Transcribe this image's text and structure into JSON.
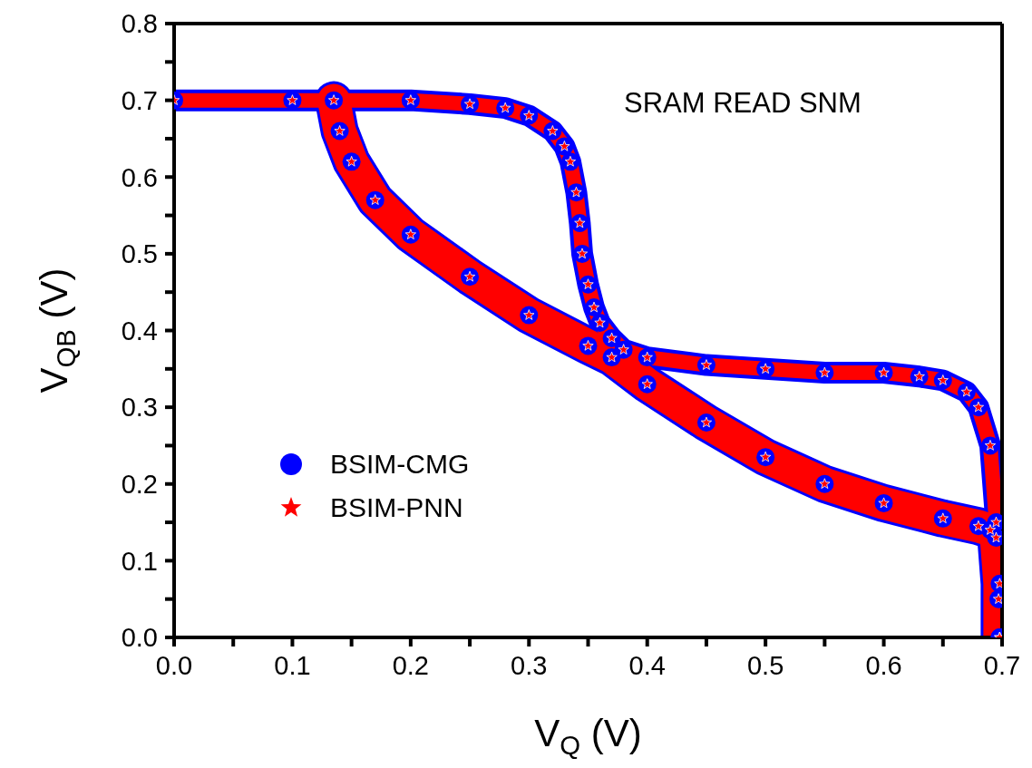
{
  "chart_data": {
    "type": "line",
    "xlabel": "V$_{Q}$ (V)",
    "ylabel": "V$_{QB}$ (V)",
    "annotations": [
      "SRAM READ SNM"
    ],
    "xlim": [
      0,
      0.7
    ],
    "ylim": [
      0,
      0.8
    ],
    "xticks": [
      {
        "value": 0,
        "label": "0.0"
      },
      {
        "value": 0.05,
        "label": null
      },
      {
        "value": 0.1,
        "label": "0.1"
      },
      {
        "value": 0.15,
        "label": null
      },
      {
        "value": 0.2,
        "label": "0.2"
      },
      {
        "value": 0.25,
        "label": null
      },
      {
        "value": 0.3,
        "label": "0.3"
      },
      {
        "value": 0.35,
        "label": null
      },
      {
        "value": 0.4,
        "label": "0.4"
      },
      {
        "value": 0.45,
        "label": null
      },
      {
        "value": 0.5,
        "label": "0.5"
      },
      {
        "value": 0.55,
        "label": null
      },
      {
        "value": 0.6,
        "label": "0.6"
      },
      {
        "value": 0.65,
        "label": null
      },
      {
        "value": 0.7,
        "label": "0.7"
      }
    ],
    "yticks": [
      {
        "value": 0,
        "label": "0.0"
      },
      {
        "value": 0.05,
        "label": null
      },
      {
        "value": 0.1,
        "label": "0.1"
      },
      {
        "value": 0.15,
        "label": null
      },
      {
        "value": 0.2,
        "label": "0.2"
      },
      {
        "value": 0.25,
        "label": null
      },
      {
        "value": 0.3,
        "label": "0.3"
      },
      {
        "value": 0.35,
        "label": null
      },
      {
        "value": 0.4,
        "label": "0.4"
      },
      {
        "value": 0.45,
        "label": null
      },
      {
        "value": 0.5,
        "label": "0.5"
      },
      {
        "value": 0.55,
        "label": null
      },
      {
        "value": 0.6,
        "label": "0.6"
      },
      {
        "value": 0.65,
        "label": null
      },
      {
        "value": 0.7,
        "label": "0.7"
      },
      {
        "value": 0.75,
        "label": null
      },
      {
        "value": 0.8,
        "label": "0.8"
      }
    ],
    "grid": false,
    "legend": "left",
    "series": [
      {
        "name": "BSIM-CMG",
        "color": "#0000ff",
        "marker": "circle",
        "x": [
          0,
          0.1,
          0.2,
          0.25,
          0.28,
          0.3,
          0.32,
          0.33,
          0.335,
          0.34,
          0.343,
          0.345,
          0.35,
          0.355,
          0.36,
          0.37,
          0.38,
          0.4,
          0.45,
          0.5,
          0.55,
          0.6,
          0.63,
          0.65,
          0.67,
          0.68,
          0.69,
          0.695,
          0.697,
          0.698
        ],
        "values": [
          0.7,
          0.7,
          0.7,
          0.695,
          0.69,
          0.68,
          0.66,
          0.64,
          0.62,
          0.58,
          0.54,
          0.5,
          0.46,
          0.43,
          0.41,
          0.39,
          0.375,
          0.365,
          0.355,
          0.35,
          0.345,
          0.345,
          0.34,
          0.335,
          0.32,
          0.3,
          0.25,
          0.15,
          0.05,
          0
        ]
      },
      {
        "color": "#0000ff",
        "marker": "circle",
        "x": [
          0.135,
          0.14,
          0.15,
          0.17,
          0.2,
          0.25,
          0.3,
          0.35,
          0.37,
          0.4,
          0.45,
          0.5,
          0.55,
          0.6,
          0.65,
          0.68,
          0.69,
          0.695,
          0.698,
          0.698
        ],
        "values": [
          0.7,
          0.66,
          0.62,
          0.57,
          0.525,
          0.47,
          0.42,
          0.38,
          0.365,
          0.33,
          0.28,
          0.235,
          0.2,
          0.175,
          0.155,
          0.145,
          0.14,
          0.13,
          0.07,
          0
        ]
      },
      {
        "name": "BSIM-PNN",
        "color": "#ff0000",
        "marker": "star",
        "x": [
          0,
          0.1,
          0.2,
          0.25,
          0.28,
          0.3,
          0.32,
          0.33,
          0.335,
          0.34,
          0.343,
          0.345,
          0.35,
          0.355,
          0.36,
          0.37,
          0.38,
          0.4,
          0.45,
          0.5,
          0.55,
          0.6,
          0.63,
          0.65,
          0.67,
          0.68,
          0.69,
          0.695,
          0.697,
          0.698
        ],
        "values": [
          0.7,
          0.7,
          0.7,
          0.695,
          0.69,
          0.68,
          0.66,
          0.64,
          0.62,
          0.58,
          0.54,
          0.5,
          0.46,
          0.43,
          0.41,
          0.39,
          0.375,
          0.365,
          0.355,
          0.35,
          0.345,
          0.345,
          0.34,
          0.335,
          0.32,
          0.3,
          0.25,
          0.15,
          0.05,
          0
        ]
      },
      {
        "color": "#ff0000",
        "marker": "star",
        "x": [
          0.135,
          0.14,
          0.15,
          0.17,
          0.2,
          0.25,
          0.3,
          0.35,
          0.37,
          0.4,
          0.45,
          0.5,
          0.55,
          0.6,
          0.65,
          0.68,
          0.69,
          0.695,
          0.698,
          0.698
        ],
        "values": [
          0.7,
          0.66,
          0.62,
          0.57,
          0.525,
          0.47,
          0.42,
          0.38,
          0.365,
          0.33,
          0.28,
          0.235,
          0.2,
          0.175,
          0.155,
          0.145,
          0.14,
          0.13,
          0.07,
          0
        ]
      }
    ]
  }
}
